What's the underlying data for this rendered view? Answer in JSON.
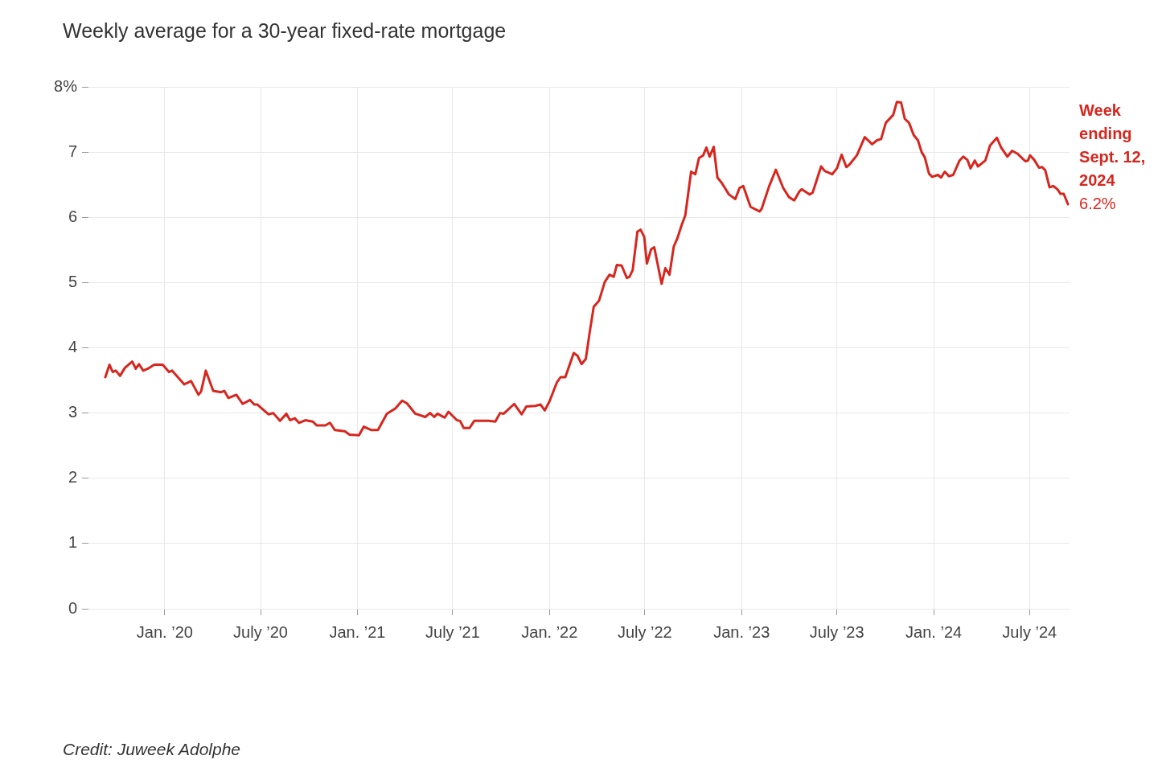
{
  "chart_data": {
    "type": "line",
    "title": "Weekly average for a 30-year fixed-rate mortgage",
    "xlim": [
      "2019-08-09",
      "2024-09-15"
    ],
    "xticks": [
      {
        "value": "2020-01",
        "label": "Jan. ’20"
      },
      {
        "value": "2020-07",
        "label": "July ’20"
      },
      {
        "value": "2021-01",
        "label": "Jan. ’21"
      },
      {
        "value": "2021-07",
        "label": "July ’21"
      },
      {
        "value": "2022-01",
        "label": "Jan. ’22"
      },
      {
        "value": "2022-07",
        "label": "July ’22"
      },
      {
        "value": "2023-01",
        "label": "Jan. ’23"
      },
      {
        "value": "2023-07",
        "label": "July ’23"
      },
      {
        "value": "2024-01",
        "label": "Jan. ’24"
      },
      {
        "value": "2024-07",
        "label": "July ’24"
      }
    ],
    "ylim": [
      0,
      8
    ],
    "yticks": [
      0,
      1,
      2,
      3,
      4,
      5,
      6,
      7,
      {
        "value": 8,
        "label": "8%"
      }
    ],
    "grid": true,
    "legend": false,
    "marker": "none",
    "line_style": "solid",
    "x": [
      "2019-09-10",
      "2019-09-18",
      "2019-09-24",
      "2019-09-30",
      "2019-10-08",
      "2019-10-17",
      "2019-10-31",
      "2019-11-07",
      "2019-11-13",
      "2019-11-21",
      "2019-11-30",
      "2019-12-12",
      "2019-12-28",
      "2020-01-09",
      "2020-01-15",
      "2020-02-07",
      "2020-02-20",
      "2020-03-05",
      "2020-03-10",
      "2020-03-19",
      "2020-04-02",
      "2020-04-17",
      "2020-04-23",
      "2020-05-01",
      "2020-05-16",
      "2020-05-28",
      "2020-06-11",
      "2020-06-19",
      "2020-06-25",
      "2020-07-16",
      "2020-07-25",
      "2020-08-07",
      "2020-08-19",
      "2020-08-26",
      "2020-09-04",
      "2020-09-12",
      "2020-09-24",
      "2020-10-08",
      "2020-10-16",
      "2020-11-01",
      "2020-11-10",
      "2020-11-19",
      "2020-12-08",
      "2020-12-17",
      "2021-01-04",
      "2021-01-13",
      "2021-01-27",
      "2021-02-09",
      "2021-02-26",
      "2021-03-14",
      "2021-03-27",
      "2021-04-05",
      "2021-04-21",
      "2021-05-10",
      "2021-05-19",
      "2021-05-27",
      "2021-06-02",
      "2021-06-16",
      "2021-06-23",
      "2021-07-09",
      "2021-07-15",
      "2021-07-22",
      "2021-08-02",
      "2021-08-11",
      "2021-09-07",
      "2021-09-20",
      "2021-09-29",
      "2021-10-06",
      "2021-10-26",
      "2021-11-09",
      "2021-11-18",
      "2021-12-05",
      "2021-12-15",
      "2021-12-23",
      "2022-01-01",
      "2022-01-15",
      "2022-01-22",
      "2022-01-31",
      "2022-02-16",
      "2022-02-23",
      "2022-03-03",
      "2022-03-11",
      "2022-03-18",
      "2022-03-26",
      "2022-04-05",
      "2022-04-16",
      "2022-04-25",
      "2022-05-03",
      "2022-05-09",
      "2022-05-18",
      "2022-05-28",
      "2022-06-02",
      "2022-06-08",
      "2022-06-17",
      "2022-06-23",
      "2022-06-30",
      "2022-07-05",
      "2022-07-13",
      "2022-07-19",
      "2022-08-02",
      "2022-08-09",
      "2022-08-17",
      "2022-08-25",
      "2022-09-01",
      "2022-09-09",
      "2022-09-16",
      "2022-09-27",
      "2022-10-05",
      "2022-10-12",
      "2022-10-20",
      "2022-10-26",
      "2022-11-01",
      "2022-11-09",
      "2022-11-16",
      "2022-11-24",
      "2022-12-08",
      "2022-12-20",
      "2022-12-28",
      "2023-01-04",
      "2023-01-18",
      "2023-02-04",
      "2023-02-08",
      "2023-02-22",
      "2023-03-07",
      "2023-03-21",
      "2023-04-01",
      "2023-04-11",
      "2023-04-21",
      "2023-04-25",
      "2023-05-10",
      "2023-05-16",
      "2023-06-01",
      "2023-06-08",
      "2023-06-22",
      "2023-07-01",
      "2023-07-10",
      "2023-07-19",
      "2023-07-25",
      "2023-08-08",
      "2023-08-23",
      "2023-09-06",
      "2023-09-15",
      "2023-09-23",
      "2023-10-02",
      "2023-10-16",
      "2023-10-23",
      "2023-10-31",
      "2023-11-07",
      "2023-11-15",
      "2023-11-24",
      "2023-12-02",
      "2023-12-09",
      "2023-12-15",
      "2023-12-23",
      "2023-12-29",
      "2024-01-09",
      "2024-01-15",
      "2024-01-22",
      "2024-01-30",
      "2024-02-07",
      "2024-02-19",
      "2024-02-26",
      "2024-03-05",
      "2024-03-11",
      "2024-03-19",
      "2024-03-25",
      "2024-04-08",
      "2024-04-17",
      "2024-04-30",
      "2024-05-08",
      "2024-05-20",
      "2024-05-29",
      "2024-06-09",
      "2024-06-23",
      "2024-06-28",
      "2024-07-02",
      "2024-07-10",
      "2024-07-19",
      "2024-07-25",
      "2024-07-31",
      "2024-08-08",
      "2024-08-15",
      "2024-08-23",
      "2024-08-29",
      "2024-09-04",
      "2024-09-12"
    ],
    "series": [
      {
        "color": "#d7261e",
        "values": [
          3.55,
          3.74,
          3.63,
          3.65,
          3.57,
          3.69,
          3.79,
          3.68,
          3.75,
          3.65,
          3.68,
          3.74,
          3.74,
          3.63,
          3.65,
          3.44,
          3.49,
          3.28,
          3.33,
          3.65,
          3.34,
          3.32,
          3.34,
          3.23,
          3.28,
          3.14,
          3.2,
          3.13,
          3.13,
          2.98,
          3.0,
          2.88,
          2.99,
          2.89,
          2.92,
          2.85,
          2.89,
          2.87,
          2.81,
          2.81,
          2.85,
          2.74,
          2.72,
          2.67,
          2.66,
          2.79,
          2.74,
          2.74,
          2.99,
          3.07,
          3.19,
          3.15,
          2.99,
          2.94,
          3.0,
          2.94,
          2.99,
          2.93,
          3.02,
          2.89,
          2.88,
          2.77,
          2.77,
          2.88,
          2.88,
          2.87,
          3.0,
          2.99,
          3.14,
          2.98,
          3.1,
          3.11,
          3.13,
          3.04,
          3.18,
          3.47,
          3.55,
          3.55,
          3.92,
          3.88,
          3.75,
          3.83,
          4.22,
          4.63,
          4.72,
          5.01,
          5.12,
          5.09,
          5.27,
          5.26,
          5.07,
          5.09,
          5.19,
          5.78,
          5.81,
          5.7,
          5.29,
          5.51,
          5.54,
          4.98,
          5.22,
          5.12,
          5.55,
          5.68,
          5.88,
          6.03,
          6.7,
          6.66,
          6.91,
          6.95,
          7.07,
          6.93,
          7.08,
          6.61,
          6.53,
          6.35,
          6.28,
          6.45,
          6.48,
          6.16,
          6.09,
          6.13,
          6.47,
          6.73,
          6.45,
          6.31,
          6.26,
          6.4,
          6.43,
          6.35,
          6.38,
          6.78,
          6.71,
          6.66,
          6.75,
          6.96,
          6.77,
          6.81,
          6.95,
          7.23,
          7.12,
          7.18,
          7.2,
          7.45,
          7.57,
          7.77,
          7.76,
          7.51,
          7.45,
          7.26,
          7.18,
          7.0,
          6.92,
          6.67,
          6.62,
          6.65,
          6.61,
          6.7,
          6.63,
          6.65,
          6.87,
          6.93,
          6.88,
          6.75,
          6.87,
          6.78,
          6.87,
          7.1,
          7.22,
          7.07,
          6.93,
          7.02,
          6.97,
          6.86,
          6.87,
          6.95,
          6.88,
          6.76,
          6.77,
          6.72,
          6.46,
          6.48,
          6.43,
          6.36,
          6.36,
          6.2
        ],
        "value_labels": [
          null,
          null,
          null,
          null,
          null,
          null,
          null,
          null,
          null,
          null,
          null,
          null,
          null,
          null,
          null,
          null,
          null,
          null,
          null,
          null,
          null,
          null,
          null,
          null,
          null,
          null,
          null,
          null,
          null,
          null,
          null,
          null,
          null,
          null,
          null,
          null,
          null,
          null,
          null,
          null,
          null,
          null,
          null,
          null,
          null,
          null,
          null,
          null,
          null,
          null,
          null,
          null,
          null,
          null,
          null,
          null,
          null,
          null,
          null,
          null,
          null,
          null,
          null,
          null,
          null,
          null,
          null,
          null,
          null,
          null,
          null,
          null,
          null,
          null,
          null,
          null,
          null,
          null,
          null,
          null,
          null,
          null,
          null,
          null,
          null,
          null,
          null,
          null,
          null,
          null,
          null,
          null,
          null,
          null,
          null,
          null,
          null,
          null,
          null,
          null,
          null,
          null,
          null,
          null,
          null,
          null,
          null,
          null,
          null,
          null,
          null,
          null,
          null,
          null,
          null,
          null,
          null,
          null,
          null,
          null,
          null,
          null,
          null,
          null,
          null,
          null,
          null,
          null,
          null,
          null,
          null,
          null,
          null,
          null,
          null,
          null,
          null,
          null,
          null,
          null,
          null,
          null,
          null,
          null,
          null,
          null,
          null,
          null,
          null,
          null,
          null,
          null,
          null,
          null,
          null,
          null,
          null,
          null,
          null,
          null,
          null,
          null,
          null,
          null,
          null,
          null,
          null,
          null,
          null,
          null,
          null,
          null,
          null,
          null,
          null,
          null,
          null,
          null,
          null,
          null,
          null,
          null,
          null,
          null,
          null,
          "6.2%"
        ]
      }
    ],
    "annotations": [
      {
        "text": "Week ending Sept. 12, 2024",
        "x": "2024-09-12",
        "y": 6.2
      },
      "Credit: Juweek Adolphe"
    ]
  }
}
